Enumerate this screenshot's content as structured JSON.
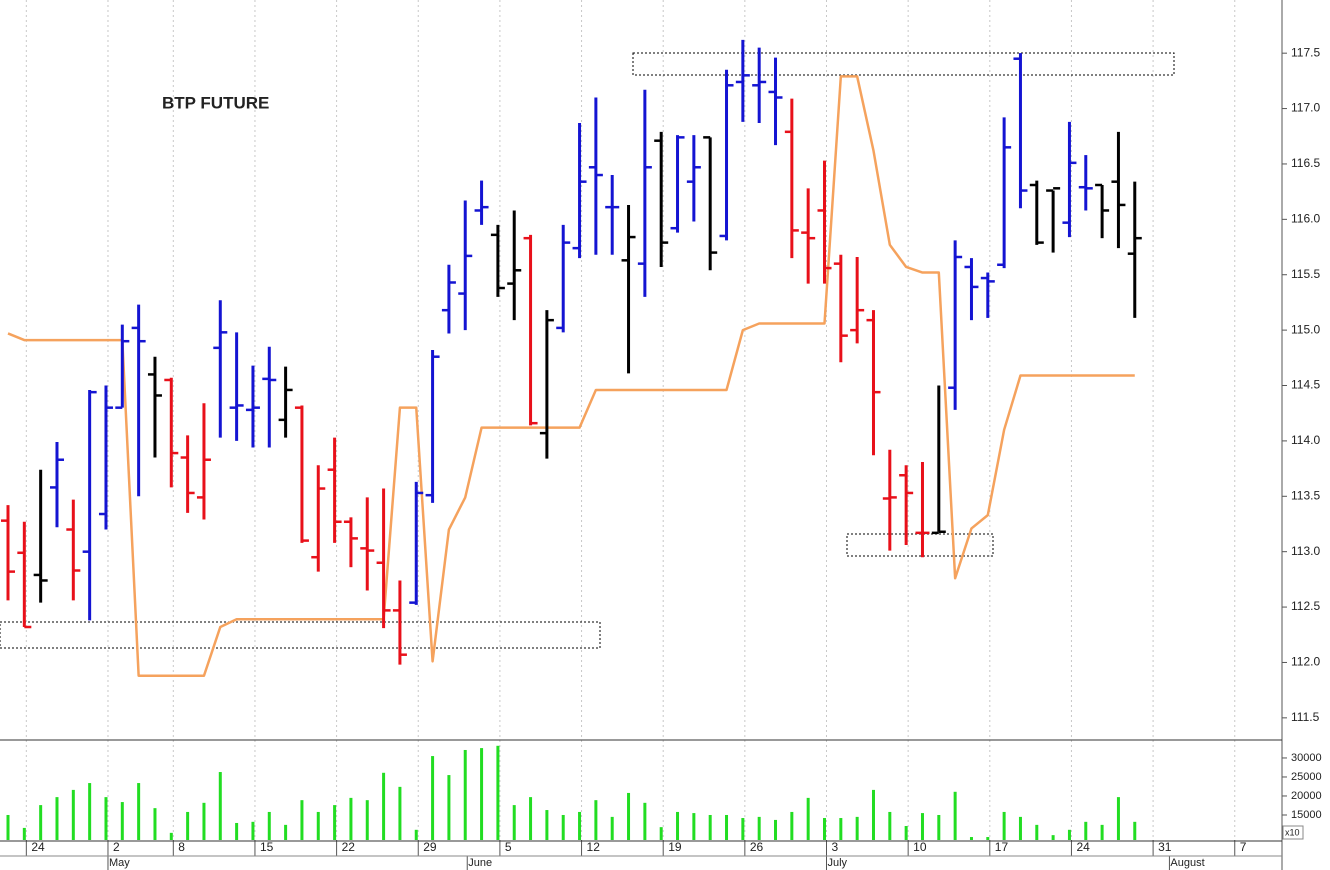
{
  "chart_data": {
    "type": "ohlc",
    "title": "BTP FUTURE",
    "categories": [
      null,
      "24",
      null,
      null,
      null,
      null,
      "2",
      null,
      null,
      null,
      "8",
      null,
      null,
      null,
      null,
      "15",
      null,
      null,
      null,
      null,
      "22",
      null,
      null,
      null,
      null,
      "29",
      null,
      null,
      null,
      null,
      "5",
      null,
      null,
      null,
      null,
      "12",
      null,
      null,
      null,
      null,
      "19",
      null,
      null,
      null,
      null,
      "26",
      null,
      null,
      null,
      null,
      "3",
      null,
      null,
      null,
      null,
      "10",
      null,
      null,
      null,
      null,
      "17",
      null,
      null,
      null,
      null,
      "24",
      null,
      null,
      null,
      null,
      "31",
      null,
      null,
      null,
      null,
      "7",
      null,
      null
    ],
    "months": [
      null,
      null,
      null,
      null,
      null,
      null,
      "May",
      null,
      null,
      null,
      null,
      null,
      null,
      null,
      null,
      null,
      null,
      null,
      null,
      null,
      null,
      null,
      null,
      null,
      null,
      null,
      null,
      null,
      "June",
      null,
      null,
      null,
      null,
      null,
      null,
      null,
      null,
      null,
      null,
      null,
      null,
      null,
      null,
      null,
      null,
      null,
      null,
      null,
      null,
      null,
      "July",
      null,
      null,
      null,
      null,
      null,
      null,
      null,
      null,
      null,
      null,
      null,
      null,
      null,
      null,
      null,
      null,
      null,
      null,
      null,
      null,
      "August",
      null,
      null,
      null,
      null,
      null,
      null
    ],
    "open": [
      113.28,
      112.99,
      112.79,
      113.58,
      113.2,
      113.0,
      113.34,
      114.3,
      115.02,
      114.6,
      114.55,
      113.85,
      113.49,
      114.84,
      114.3,
      114.28,
      114.56,
      114.19,
      114.3,
      112.95,
      113.74,
      113.27,
      113.03,
      112.9,
      112.47,
      112.54,
      113.51,
      115.18,
      115.33,
      116.08,
      115.86,
      115.42,
      115.83,
      114.07,
      115.02,
      115.74,
      116.47,
      116.11,
      115.63,
      115.6,
      116.71,
      115.92,
      116.34,
      116.74,
      115.85,
      117.24,
      117.21,
      117.15,
      116.79,
      115.88,
      116.08,
      115.6,
      115.0,
      115.09,
      113.48,
      113.69,
      113.17,
      113.17,
      114.48,
      115.57,
      115.47,
      115.59,
      117.45,
      116.31,
      116.26,
      115.97,
      116.29,
      116.31,
      116.34,
      115.69,
      null,
      null,
      null,
      null,
      null,
      null,
      null,
      null
    ],
    "high": [
      113.42,
      113.27,
      113.74,
      113.99,
      113.47,
      114.46,
      114.5,
      115.05,
      115.23,
      114.76,
      114.57,
      114.05,
      114.34,
      115.27,
      114.98,
      114.68,
      114.85,
      114.67,
      114.32,
      113.78,
      114.03,
      113.31,
      113.49,
      113.57,
      112.74,
      113.63,
      114.82,
      115.59,
      116.17,
      116.35,
      115.95,
      116.08,
      115.86,
      115.18,
      115.95,
      116.87,
      117.1,
      116.4,
      116.13,
      117.17,
      116.79,
      116.76,
      116.76,
      116.74,
      117.35,
      117.62,
      117.55,
      117.46,
      117.09,
      116.28,
      116.53,
      115.68,
      115.66,
      115.18,
      113.92,
      113.78,
      113.81,
      114.5,
      115.81,
      115.65,
      115.52,
      116.92,
      117.5,
      116.35,
      116.26,
      116.88,
      116.58,
      116.31,
      116.79,
      116.34,
      null,
      null,
      null,
      null,
      null,
      null,
      null,
      null
    ],
    "low": [
      112.56,
      112.32,
      112.54,
      113.22,
      112.56,
      112.38,
      113.2,
      114.3,
      113.5,
      113.85,
      113.58,
      113.35,
      113.29,
      114.03,
      114.0,
      113.94,
      113.94,
      114.03,
      113.08,
      112.82,
      113.08,
      112.86,
      112.65,
      112.31,
      111.98,
      112.52,
      113.44,
      114.97,
      115.0,
      115.95,
      115.3,
      115.09,
      114.14,
      113.84,
      114.98,
      115.65,
      115.68,
      115.68,
      114.61,
      115.3,
      115.57,
      115.88,
      115.98,
      115.54,
      115.81,
      116.88,
      116.87,
      116.67,
      115.65,
      115.42,
      115.42,
      114.71,
      114.88,
      113.87,
      113.01,
      113.06,
      112.95,
      113.18,
      114.28,
      115.09,
      115.11,
      115.56,
      116.1,
      115.77,
      115.7,
      115.84,
      116.08,
      115.83,
      115.74,
      115.11,
      null,
      null,
      null,
      null,
      null,
      null,
      null,
      null
    ],
    "close": [
      112.82,
      112.32,
      112.74,
      113.83,
      112.83,
      114.44,
      114.3,
      114.9,
      114.9,
      114.41,
      113.89,
      113.53,
      113.83,
      114.98,
      114.32,
      114.3,
      114.55,
      114.46,
      113.1,
      113.57,
      113.27,
      113.12,
      113.01,
      112.47,
      112.07,
      113.53,
      114.76,
      115.43,
      115.67,
      116.11,
      115.38,
      115.54,
      114.16,
      115.09,
      115.79,
      116.34,
      116.4,
      116.11,
      115.84,
      116.47,
      115.79,
      116.74,
      116.47,
      115.7,
      117.21,
      117.3,
      117.24,
      117.1,
      115.9,
      115.83,
      115.56,
      114.95,
      115.18,
      114.44,
      113.49,
      113.53,
      113.17,
      113.18,
      115.66,
      115.39,
      115.44,
      116.65,
      116.26,
      115.79,
      116.28,
      116.51,
      116.28,
      116.08,
      116.13,
      115.83,
      null,
      null,
      null,
      null,
      null,
      null,
      null,
      null
    ],
    "bar_colors": [
      "#e8101a",
      "#e8101a",
      "#000000",
      "#1414d2",
      "#e8101a",
      "#1414d2",
      "#1414d2",
      "#1414d2",
      "#1414d2",
      "#000000",
      "#e8101a",
      "#e8101a",
      "#e8101a",
      "#1414d2",
      "#1414d2",
      "#1414d2",
      "#1414d2",
      "#000000",
      "#e8101a",
      "#e8101a",
      "#e8101a",
      "#e8101a",
      "#e8101a",
      "#e8101a",
      "#e8101a",
      "#1414d2",
      "#1414d2",
      "#1414d2",
      "#1414d2",
      "#1414d2",
      "#000000",
      "#000000",
      "#e8101a",
      "#000000",
      "#1414d2",
      "#1414d2",
      "#1414d2",
      "#1414d2",
      "#000000",
      "#1414d2",
      "#000000",
      "#1414d2",
      "#1414d2",
      "#000000",
      "#1414d2",
      "#1414d2",
      "#1414d2",
      "#1414d2",
      "#e8101a",
      "#e8101a",
      "#e8101a",
      "#e8101a",
      "#e8101a",
      "#e8101a",
      "#e8101a",
      "#e8101a",
      "#e8101a",
      "#000000",
      "#1414d2",
      "#1414d2",
      "#1414d2",
      "#1414d2",
      "#1414d2",
      "#000000",
      "#000000",
      "#1414d2",
      "#1414d2",
      "#000000",
      "#000000",
      "#000000",
      null,
      null,
      null,
      null,
      null,
      null,
      null,
      null
    ],
    "line": {
      "color": "#f5a25d",
      "values": [
        114.97,
        114.91,
        114.91,
        114.91,
        114.91,
        114.91,
        114.91,
        114.91,
        111.88,
        111.88,
        111.88,
        111.88,
        111.88,
        112.32,
        112.39,
        112.39,
        112.39,
        112.39,
        112.39,
        112.39,
        112.39,
        112.39,
        112.39,
        112.39,
        114.3,
        114.3,
        112.01,
        113.2,
        113.49,
        114.12,
        114.12,
        114.12,
        114.12,
        114.12,
        114.12,
        114.12,
        114.46,
        114.46,
        114.46,
        114.46,
        114.46,
        114.46,
        114.46,
        114.46,
        114.46,
        115.0,
        115.06,
        115.06,
        115.06,
        115.06,
        115.06,
        117.29,
        117.29,
        116.62,
        115.77,
        115.57,
        115.52,
        115.52,
        112.76,
        113.21,
        113.33,
        114.1,
        114.59,
        114.59,
        114.59,
        114.59,
        114.59,
        114.59,
        114.59,
        114.59,
        null,
        null,
        null,
        null,
        null,
        null,
        null,
        null
      ]
    },
    "ylim": [
      111.3,
      117.98
    ],
    "yticks": [
      111.5,
      {
        "value": 112,
        "label": "112.0"
      },
      112.5,
      {
        "value": 113,
        "label": "113.0"
      },
      113.5,
      {
        "value": 114,
        "label": "114.0"
      },
      114.5,
      {
        "value": 115,
        "label": "115.0"
      },
      115.5,
      {
        "value": 116,
        "label": "116.0"
      },
      116.5,
      {
        "value": 117,
        "label": "117.0"
      },
      117.5
    ],
    "volume": {
      "color": "#22dd22",
      "values": [
        15000,
        11600,
        17600,
        19700,
        21600,
        23400,
        19700,
        18400,
        23400,
        16800,
        10300,
        15800,
        18200,
        26300,
        12900,
        13200,
        15800,
        12400,
        18900,
        15800,
        17600,
        19500,
        18900,
        26100,
        22400,
        11100,
        30500,
        25500,
        32100,
        32600,
        33200,
        17600,
        19700,
        16300,
        15000,
        15800,
        18900,
        14500,
        20800,
        18200,
        11800,
        15800,
        15500,
        15000,
        15000,
        14200,
        14500,
        13700,
        15800,
        19500,
        14200,
        14200,
        14500,
        21600,
        15800,
        12100,
        15500,
        15000,
        21100,
        9200,
        9200,
        15800,
        14500,
        12400,
        9700,
        11100,
        13200,
        12400,
        19700,
        13200,
        null,
        null,
        null,
        null,
        null,
        null,
        null,
        null
      ],
      "ylim": [
        8420,
        34200
      ],
      "yticks": [
        15000,
        20000,
        25000,
        30000
      ],
      "multiplier_label": "x10"
    }
  }
}
